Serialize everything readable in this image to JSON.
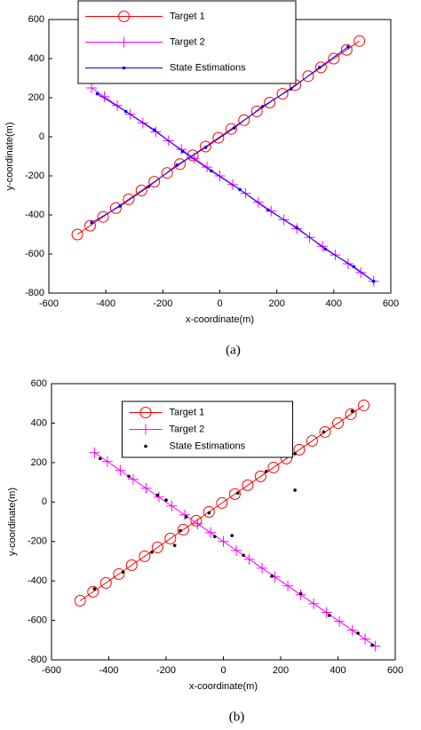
{
  "chart_data": [
    {
      "type": "line",
      "caption": "(a)",
      "x_label": "x-coordinate(m)",
      "y_label": "y-coordinate(m)",
      "xlim": [
        -600,
        600
      ],
      "xticks": [
        -600,
        -400,
        -200,
        0,
        200,
        400,
        600
      ],
      "ylim": [
        -800,
        600
      ],
      "yticks": [
        -800,
        -600,
        -400,
        -200,
        0,
        200,
        400,
        600
      ],
      "legend": "upper left",
      "series": [
        {
          "name": "Target 1",
          "color": "#ff0000",
          "marker": "circle",
          "line": true,
          "x": [
            -500,
            -455,
            -410,
            -365,
            -320,
            -275,
            -230,
            -185,
            -140,
            -95,
            -50,
            -5,
            40,
            85,
            130,
            175,
            220,
            265,
            310,
            355,
            400,
            445,
            490
          ],
          "values": [
            -500,
            -455,
            -410,
            -365,
            -320,
            -275,
            -230,
            -185,
            -140,
            -95,
            -50,
            -5,
            40,
            85,
            130,
            175,
            220,
            265,
            310,
            355,
            400,
            445,
            490
          ]
        },
        {
          "name": "Target 2",
          "color": "#ff00ff",
          "marker": "plus",
          "line": true,
          "x": [
            -450,
            -405,
            -360,
            -315,
            -270,
            -225,
            -180,
            -135,
            -90,
            -45,
            0,
            45,
            90,
            135,
            180,
            225,
            270,
            315,
            360,
            405,
            450,
            495,
            540
          ],
          "values": [
            250,
            205,
            160,
            115,
            70,
            25,
            -20,
            -65,
            -110,
            -155,
            -200,
            -245,
            -290,
            -335,
            -380,
            -425,
            -470,
            -515,
            -560,
            -605,
            -650,
            -695,
            -740
          ]
        },
        {
          "name": "State Estimations",
          "color": "#0000ff",
          "marker": "dot",
          "line": true,
          "x": [
            -450,
            -350,
            -250,
            -150,
            -50,
            50,
            150,
            250,
            350,
            450,
            null,
            -430,
            -330,
            -230,
            -130,
            -30,
            70,
            170,
            270,
            370,
            470,
            540
          ],
          "values": [
            -440,
            -355,
            -255,
            -145,
            -55,
            45,
            155,
            245,
            355,
            460,
            null,
            220,
            130,
            35,
            -75,
            -175,
            -270,
            -375,
            -465,
            -575,
            -665,
            -740
          ]
        }
      ]
    },
    {
      "type": "line",
      "caption": "(b)",
      "x_label": "x-coordinate(m)",
      "y_label": "y-coordinate(m)",
      "xlim": [
        -600,
        600
      ],
      "xticks": [
        -600,
        -400,
        -200,
        0,
        200,
        400,
        600
      ],
      "ylim": [
        -800,
        600
      ],
      "yticks": [
        -800,
        -600,
        -400,
        -200,
        0,
        200,
        400,
        600
      ],
      "legend": "upper center",
      "series": [
        {
          "name": "Target 1",
          "color": "#ff0000",
          "marker": "circle",
          "line": true,
          "x": [
            -500,
            -455,
            -410,
            -365,
            -320,
            -275,
            -230,
            -185,
            -140,
            -95,
            -50,
            -5,
            40,
            85,
            130,
            175,
            220,
            265,
            310,
            355,
            400,
            445,
            490
          ],
          "values": [
            -500,
            -455,
            -410,
            -365,
            -320,
            -275,
            -230,
            -185,
            -140,
            -95,
            -50,
            -5,
            40,
            85,
            130,
            175,
            220,
            265,
            310,
            355,
            400,
            445,
            490
          ]
        },
        {
          "name": "Target 2",
          "color": "#ff00ff",
          "marker": "plus",
          "line": true,
          "x": [
            -450,
            -405,
            -360,
            -315,
            -270,
            -225,
            -180,
            -135,
            -90,
            -45,
            0,
            45,
            90,
            135,
            180,
            225,
            270,
            315,
            360,
            405,
            450,
            495,
            530
          ],
          "values": [
            250,
            205,
            160,
            115,
            70,
            25,
            -20,
            -65,
            -110,
            -155,
            -200,
            -245,
            -290,
            -335,
            -380,
            -425,
            -470,
            -515,
            -560,
            -605,
            -650,
            -695,
            -730
          ]
        },
        {
          "name": "State Estimations",
          "color": "#000000",
          "marker": "dot",
          "line": false,
          "x": [
            -450,
            -350,
            -250,
            -150,
            -50,
            50,
            150,
            250,
            350,
            450,
            -430,
            -330,
            -230,
            -130,
            -30,
            70,
            170,
            270,
            370,
            470,
            520,
            250,
            30,
            -170,
            -200
          ],
          "values": [
            -440,
            -355,
            -255,
            -145,
            -55,
            45,
            155,
            245,
            355,
            460,
            220,
            130,
            35,
            -75,
            -175,
            -270,
            -375,
            -465,
            -575,
            -665,
            -725,
            60,
            -170,
            -220,
            10
          ]
        }
      ]
    }
  ]
}
